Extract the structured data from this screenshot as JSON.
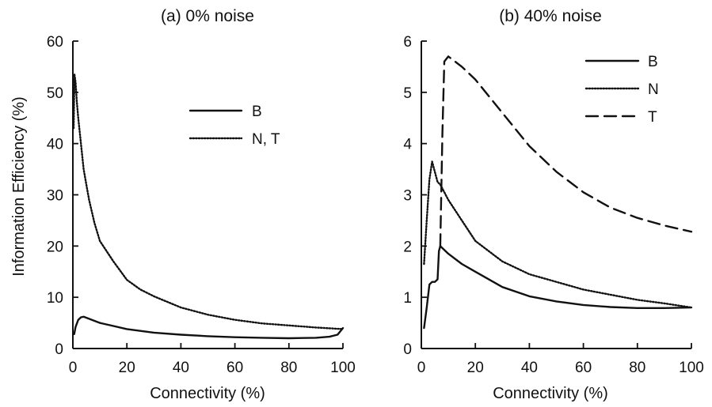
{
  "chart_data": [
    {
      "type": "line",
      "title": "(a) 0% noise",
      "xlabel": "Connectivity (%)",
      "ylabel": "Information Efficiency (%)",
      "xlim": [
        0,
        100
      ],
      "ylim": [
        0,
        60
      ],
      "xticks": [
        "0",
        "20",
        "40",
        "60",
        "80",
        "100"
      ],
      "yticks": [
        "0",
        "10",
        "20",
        "30",
        "40",
        "50",
        "60"
      ],
      "legend_position": "upper-right",
      "series": [
        {
          "name": "B",
          "style": "solid",
          "x": [
            0.5,
            1,
            2,
            3,
            4,
            6,
            8,
            10,
            15,
            20,
            30,
            40,
            50,
            60,
            70,
            80,
            90,
            95,
            98,
            100
          ],
          "y": [
            2.8,
            4.2,
            5.6,
            6.1,
            6.2,
            5.8,
            5.4,
            5.0,
            4.4,
            3.8,
            3.1,
            2.7,
            2.4,
            2.2,
            2.1,
            2.0,
            2.1,
            2.3,
            2.7,
            4.0
          ]
        },
        {
          "name": "N, T",
          "style": "dotted",
          "x": [
            0.3,
            0.6,
            1,
            1.5,
            2,
            3,
            4,
            5,
            6,
            8,
            10,
            15,
            20,
            25,
            30,
            40,
            50,
            60,
            70,
            80,
            90,
            100
          ],
          "y": [
            43,
            53.5,
            52,
            48,
            45,
            40,
            35,
            32,
            29,
            24.5,
            21,
            17,
            13.4,
            11.5,
            10.2,
            8.0,
            6.6,
            5.6,
            4.9,
            4.5,
            4.1,
            3.8
          ]
        }
      ]
    },
    {
      "type": "line",
      "title": "(b) 40% noise",
      "xlabel": "Connectivity (%)",
      "ylabel": "",
      "xlim": [
        0,
        100
      ],
      "ylim": [
        0,
        6
      ],
      "xticks": [
        "0",
        "20",
        "40",
        "60",
        "80",
        "100"
      ],
      "yticks": [
        "0",
        "1",
        "2",
        "3",
        "4",
        "5",
        "6"
      ],
      "legend_position": "upper-right",
      "series": [
        {
          "name": "B",
          "style": "solid",
          "x": [
            1,
            2,
            3,
            4,
            5,
            6,
            6.5,
            7,
            8,
            10,
            15,
            20,
            30,
            40,
            50,
            60,
            70,
            80,
            90,
            100
          ],
          "y": [
            0.4,
            0.8,
            1.25,
            1.3,
            1.3,
            1.35,
            1.9,
            2.0,
            1.95,
            1.85,
            1.65,
            1.5,
            1.2,
            1.02,
            0.92,
            0.85,
            0.81,
            0.79,
            0.79,
            0.8
          ]
        },
        {
          "name": "N",
          "style": "dotted",
          "x": [
            1,
            2,
            3,
            4,
            5,
            6,
            7,
            8,
            10,
            15,
            20,
            30,
            40,
            50,
            60,
            70,
            80,
            90,
            100
          ],
          "y": [
            1.65,
            2.5,
            3.3,
            3.65,
            3.45,
            3.25,
            3.2,
            3.1,
            2.9,
            2.5,
            2.1,
            1.7,
            1.45,
            1.3,
            1.15,
            1.05,
            0.95,
            0.88,
            0.8
          ]
        },
        {
          "name": "T",
          "style": "dashed",
          "x": [
            7,
            7.8,
            8.5,
            10,
            15,
            20,
            30,
            40,
            50,
            60,
            70,
            80,
            90,
            100
          ],
          "y": [
            2.0,
            4.2,
            5.6,
            5.7,
            5.5,
            5.25,
            4.6,
            3.95,
            3.45,
            3.05,
            2.75,
            2.55,
            2.4,
            2.28
          ]
        }
      ]
    }
  ]
}
